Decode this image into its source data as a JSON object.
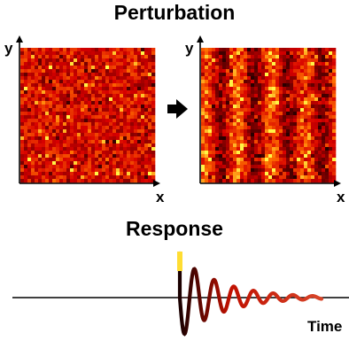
{
  "top_title": "Perturbation",
  "bottom_title": "Response",
  "panels": [
    {
      "y_label": "y",
      "x_label": "x",
      "pattern": "random-noise"
    },
    {
      "y_label": "y",
      "x_label": "x",
      "pattern": "vertical-stripes"
    }
  ],
  "arrow_icon": "right-arrow-icon",
  "time_label": "Time",
  "colors": {
    "heat_dark": "#2a0000",
    "heat_mid": "#cc1a00",
    "heat_bright": "#ffef5a",
    "axis": "#000000"
  }
}
